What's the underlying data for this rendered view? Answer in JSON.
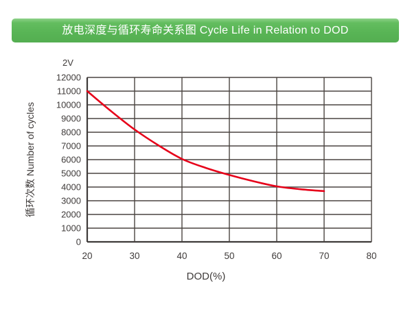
{
  "banner": {
    "title": "放电深度与循环寿命关系图 Cycle Life in Relation to DOD"
  },
  "chart_data": {
    "type": "line",
    "title": "放电深度与循环寿命关系图 Cycle Life in Relation to DOD",
    "annotation": "2V",
    "xlabel": "DOD(%)",
    "ylabel": "循环次数 Number of cycles",
    "xlim": [
      20,
      80
    ],
    "ylim": [
      0,
      12000
    ],
    "x_ticks": [
      20,
      30,
      40,
      50,
      60,
      70,
      80
    ],
    "y_ticks": [
      0,
      1000,
      2000,
      3000,
      4000,
      5000,
      6000,
      7000,
      8000,
      9000,
      10000,
      11000,
      12000
    ],
    "grid": true,
    "legend_position": "none",
    "series": [
      {
        "name": "2V",
        "color": "#e60019",
        "x": [
          20,
          25,
          30,
          35,
          40,
          45,
          50,
          55,
          60,
          65,
          70
        ],
        "y": [
          11000,
          9550,
          8200,
          7050,
          6050,
          5400,
          4880,
          4430,
          4050,
          3840,
          3700
        ]
      }
    ]
  },
  "colors": {
    "background": "#ffffff",
    "banner_green": "#5cb85c",
    "grid": "#4a4440",
    "axis": "#3e3a39",
    "text": "#3f3b3a",
    "curve_red": "#e60019"
  }
}
